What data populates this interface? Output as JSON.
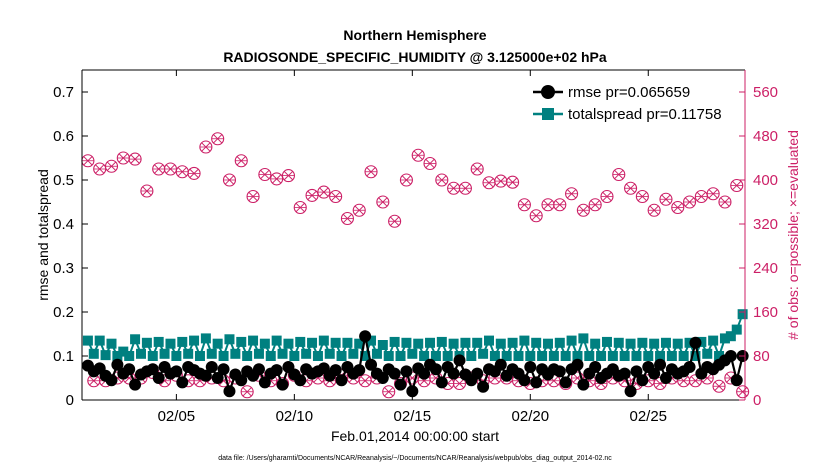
{
  "chart_data": {
    "type": "line",
    "title_line1": "Northern Hemisphere",
    "title_line2": "RADIOSONDE_SPECIFIC_HUMIDITY @ 3.125000e+02 hPa",
    "xlabel": "Feb.01,2014 00:00:00 start",
    "ylabel_left": "rmse and totalspread",
    "ylabel_right": "# of obs: o=possible; ×=evaluated",
    "footnote": "data file: /Users/gharamti/Documents/NCAR/Reanalysis/~/Documents/NCAR/Reanalysis/webpub/obs_diag_output_2014-02.nc",
    "x_unit": "days since Feb.01,2014 00:00",
    "xlim": [
      1,
      29.1
    ],
    "x_ticks": [
      {
        "x": 5,
        "label": "02/05"
      },
      {
        "x": 10,
        "label": "02/10"
      },
      {
        "x": 15,
        "label": "02/15"
      },
      {
        "x": 20,
        "label": "02/20"
      },
      {
        "x": 25,
        "label": "02/25"
      }
    ],
    "ylim_left": [
      0,
      0.75
    ],
    "ytick_labels_left": [
      "0",
      "0.1",
      "0.2",
      "0.3",
      "0.4",
      "0.5",
      "0.6",
      "0.7"
    ],
    "ylim_right": [
      0,
      600
    ],
    "ytick_labels_right": [
      "0",
      "80",
      "160",
      "240",
      "320",
      "400",
      "480",
      "560"
    ],
    "colors": {
      "rmse": "#000000",
      "totalspread": "#008080",
      "obs_count": "#cc1f66",
      "axis": "#000000"
    },
    "series": [
      {
        "name": "rmse",
        "legend_label": "rmse pr=0.065659",
        "axis": "left",
        "x": [
          1.25,
          1.5,
          1.75,
          2.0,
          2.25,
          2.5,
          2.75,
          3.0,
          3.25,
          3.5,
          3.75,
          4.0,
          4.25,
          4.5,
          4.75,
          5.0,
          5.25,
          5.5,
          5.75,
          6.0,
          6.25,
          6.5,
          6.75,
          7.0,
          7.25,
          7.5,
          7.75,
          8.0,
          8.25,
          8.5,
          8.75,
          9.0,
          9.25,
          9.5,
          9.75,
          10.0,
          10.25,
          10.5,
          10.75,
          11.0,
          11.25,
          11.5,
          11.75,
          12.0,
          12.25,
          12.5,
          12.75,
          13.0,
          13.25,
          13.5,
          13.75,
          14.0,
          14.25,
          14.5,
          14.75,
          15.0,
          15.25,
          15.5,
          15.75,
          16.0,
          16.25,
          16.5,
          16.75,
          17.0,
          17.25,
          17.5,
          17.75,
          18.0,
          18.25,
          18.5,
          18.75,
          19.0,
          19.25,
          19.5,
          19.75,
          20.0,
          20.25,
          20.5,
          20.75,
          21.0,
          21.25,
          21.5,
          21.75,
          22.0,
          22.25,
          22.5,
          22.75,
          23.0,
          23.25,
          23.5,
          23.75,
          24.0,
          24.25,
          24.5,
          24.75,
          25.0,
          25.25,
          25.5,
          25.75,
          26.0,
          26.25,
          26.5,
          26.75,
          27.0,
          27.25,
          27.5,
          27.75,
          28.0,
          28.25,
          28.5,
          28.75,
          29.0
        ],
        "values": [
          0.078,
          0.065,
          0.072,
          0.055,
          0.045,
          0.08,
          0.06,
          0.07,
          0.035,
          0.058,
          0.065,
          0.07,
          0.05,
          0.075,
          0.06,
          0.065,
          0.04,
          0.075,
          0.068,
          0.06,
          0.055,
          0.075,
          0.05,
          0.07,
          0.02,
          0.058,
          0.045,
          0.065,
          0.055,
          0.07,
          0.04,
          0.06,
          0.068,
          0.035,
          0.075,
          0.058,
          0.045,
          0.07,
          0.06,
          0.065,
          0.072,
          0.055,
          0.068,
          0.045,
          0.075,
          0.06,
          0.068,
          0.145,
          0.08,
          0.06,
          0.05,
          0.07,
          0.06,
          0.035,
          0.065,
          0.02,
          0.072,
          0.06,
          0.08,
          0.07,
          0.04,
          0.075,
          0.06,
          0.09,
          0.058,
          0.045,
          0.06,
          0.03,
          0.07,
          0.065,
          0.08,
          0.055,
          0.07,
          0.06,
          0.045,
          0.075,
          0.04,
          0.07,
          0.058,
          0.07,
          0.065,
          0.04,
          0.07,
          0.08,
          0.035,
          0.06,
          0.075,
          0.05,
          0.06,
          0.07,
          0.055,
          0.06,
          0.02,
          0.065,
          0.045,
          0.075,
          0.06,
          0.08,
          0.05,
          0.07,
          0.06,
          0.065,
          0.075,
          0.13,
          0.06,
          0.075,
          0.07,
          0.08,
          0.09,
          0.1,
          0.045,
          0.1
        ]
      },
      {
        "name": "totalspread",
        "legend_label": "totalspread pr=0.11758",
        "axis": "left",
        "x": [
          1.25,
          1.5,
          1.75,
          2.0,
          2.25,
          2.5,
          2.75,
          3.0,
          3.25,
          3.5,
          3.75,
          4.0,
          4.25,
          4.5,
          4.75,
          5.0,
          5.25,
          5.5,
          5.75,
          6.0,
          6.25,
          6.5,
          6.75,
          7.0,
          7.25,
          7.5,
          7.75,
          8.0,
          8.25,
          8.5,
          8.75,
          9.0,
          9.25,
          9.5,
          9.75,
          10.0,
          10.25,
          10.5,
          10.75,
          11.0,
          11.25,
          11.5,
          11.75,
          12.0,
          12.25,
          12.5,
          12.75,
          13.0,
          13.25,
          13.5,
          13.75,
          14.0,
          14.25,
          14.5,
          14.75,
          15.0,
          15.25,
          15.5,
          15.75,
          16.0,
          16.25,
          16.5,
          16.75,
          17.0,
          17.25,
          17.5,
          17.75,
          18.0,
          18.25,
          18.5,
          18.75,
          19.0,
          19.25,
          19.5,
          19.75,
          20.0,
          20.25,
          20.5,
          20.75,
          21.0,
          21.25,
          21.5,
          21.75,
          22.0,
          22.25,
          22.5,
          22.75,
          23.0,
          23.25,
          23.5,
          23.75,
          24.0,
          24.25,
          24.5,
          24.75,
          25.0,
          25.25,
          25.5,
          25.75,
          26.0,
          26.25,
          26.5,
          26.75,
          27.0,
          27.25,
          27.5,
          27.75,
          28.0,
          28.25,
          28.5,
          28.75,
          29.0
        ],
        "values": [
          0.135,
          0.105,
          0.135,
          0.102,
          0.128,
          0.1,
          0.11,
          0.1,
          0.138,
          0.105,
          0.13,
          0.1,
          0.132,
          0.105,
          0.128,
          0.1,
          0.132,
          0.105,
          0.135,
          0.1,
          0.14,
          0.105,
          0.128,
          0.1,
          0.138,
          0.105,
          0.132,
          0.1,
          0.135,
          0.105,
          0.128,
          0.1,
          0.135,
          0.105,
          0.128,
          0.1,
          0.132,
          0.105,
          0.13,
          0.1,
          0.135,
          0.105,
          0.13,
          0.1,
          0.13,
          0.105,
          0.128,
          0.1,
          0.135,
          0.105,
          0.125,
          0.1,
          0.132,
          0.1,
          0.13,
          0.105,
          0.128,
          0.1,
          0.13,
          0.1,
          0.132,
          0.1,
          0.128,
          0.1,
          0.13,
          0.1,
          0.13,
          0.105,
          0.135,
          0.1,
          0.128,
          0.1,
          0.13,
          0.1,
          0.135,
          0.1,
          0.13,
          0.1,
          0.128,
          0.1,
          0.13,
          0.1,
          0.135,
          0.1,
          0.14,
          0.1,
          0.128,
          0.1,
          0.132,
          0.1,
          0.13,
          0.1,
          0.128,
          0.1,
          0.13,
          0.1,
          0.128,
          0.1,
          0.13,
          0.1,
          0.128,
          0.1,
          0.13,
          0.1,
          0.132,
          0.105,
          0.135,
          0.1,
          0.14,
          0.145,
          0.16,
          0.195
        ]
      },
      {
        "name": "obs_possible",
        "legend_label": "",
        "marker": "circle",
        "axis": "right",
        "x": [
          1.25,
          1.5,
          1.75,
          2.0,
          2.25,
          2.5,
          2.75,
          3.0,
          3.25,
          3.5,
          3.75,
          4.0,
          4.25,
          4.5,
          4.75,
          5.0,
          5.25,
          5.5,
          5.75,
          6.0,
          6.25,
          6.5,
          6.75,
          7.0,
          7.25,
          7.5,
          7.75,
          8.0,
          8.25,
          8.5,
          8.75,
          9.0,
          9.25,
          9.5,
          9.75,
          10.0,
          10.25,
          10.5,
          10.75,
          11.0,
          11.25,
          11.5,
          11.75,
          12.0,
          12.25,
          12.5,
          12.75,
          13.0,
          13.25,
          13.5,
          13.75,
          14.0,
          14.25,
          14.5,
          14.75,
          15.0,
          15.25,
          15.5,
          15.75,
          16.0,
          16.25,
          16.5,
          16.75,
          17.0,
          17.25,
          17.5,
          17.75,
          18.0,
          18.25,
          18.5,
          18.75,
          19.0,
          19.25,
          19.5,
          19.75,
          20.0,
          20.25,
          20.5,
          20.75,
          21.0,
          21.25,
          21.5,
          21.75,
          22.0,
          22.25,
          22.5,
          22.75,
          23.0,
          23.25,
          23.5,
          23.75,
          24.0,
          24.25,
          24.5,
          24.75,
          25.0,
          25.25,
          25.5,
          25.75,
          26.0,
          26.25,
          26.5,
          26.75,
          27.0,
          27.25,
          27.5,
          27.75,
          28.0,
          28.25,
          28.5,
          28.75,
          29.0
        ],
        "values": [
          435,
          35,
          420,
          35,
          425,
          40,
          440,
          40,
          438,
          40,
          380,
          50,
          420,
          35,
          420,
          45,
          415,
          35,
          412,
          35,
          460,
          40,
          475,
          35,
          400,
          40,
          435,
          15,
          370,
          45,
          410,
          35,
          402,
          30,
          408,
          45,
          350,
          35,
          372,
          40,
          378,
          35,
          370,
          45,
          330,
          40,
          345,
          35,
          415,
          40,
          360,
          15,
          325,
          30,
          400,
          40,
          445,
          35,
          430,
          40,
          400,
          30,
          385,
          30,
          385,
          40,
          420,
          35,
          395,
          40,
          398,
          40,
          396,
          35,
          355,
          30,
          335,
          35,
          355,
          35,
          355,
          30,
          375,
          40,
          345,
          35,
          355,
          30,
          370,
          40,
          410,
          35,
          385,
          30,
          370,
          35,
          345,
          30,
          365,
          40,
          350,
          35,
          360,
          35,
          370,
          40,
          375,
          25,
          360,
          40,
          390,
          15
        ]
      },
      {
        "name": "obs_evaluated",
        "legend_label": "",
        "marker": "x",
        "axis": "right",
        "values_note": "same counts as obs_possible (every possible observation evaluated)"
      }
    ]
  }
}
